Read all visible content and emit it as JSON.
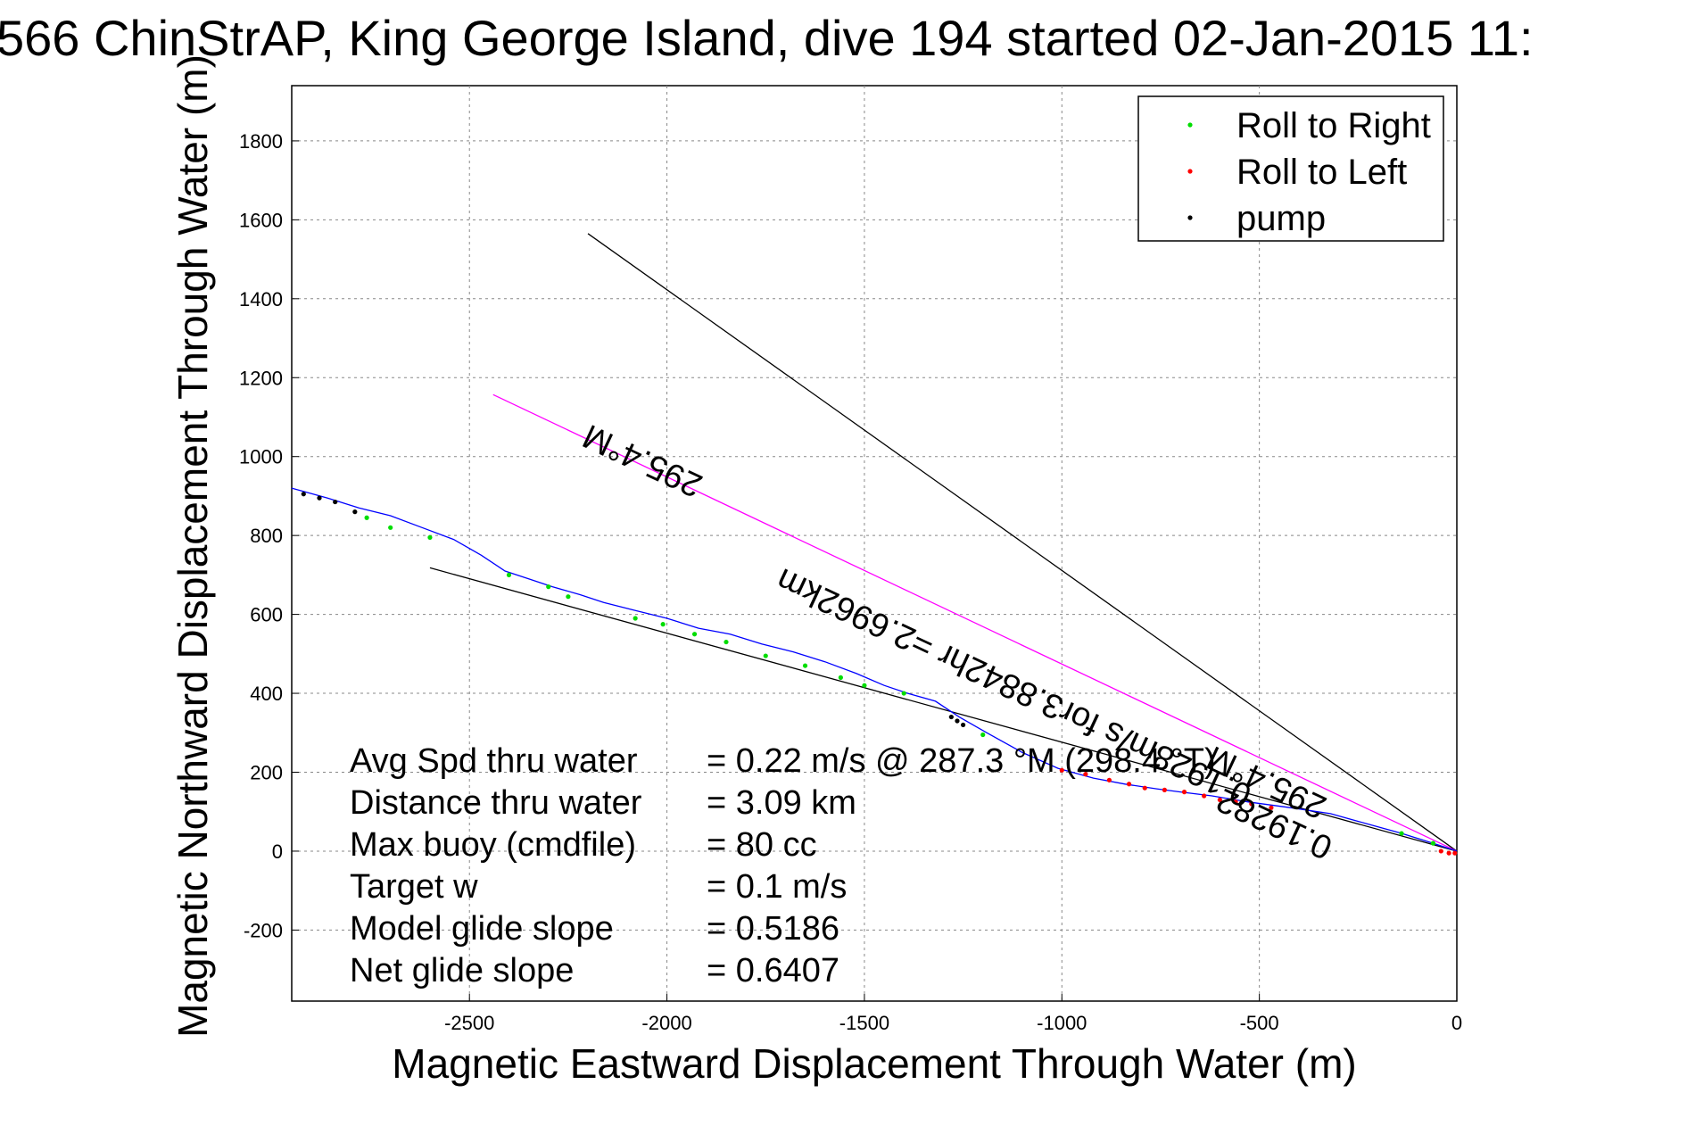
{
  "chart_data": {
    "type": "line",
    "title": "566 ChinStrAP, King George Island, dive 194 started 02-Jan-2015 11:",
    "xlabel": "Magnetic Eastward Displacement Through Water (m)",
    "ylabel": "Magnetic Northward Displacement Through Water (m)",
    "xlim": [
      -2950,
      0
    ],
    "ylim": [
      -380,
      1940
    ],
    "xticks": [
      -2500,
      -2000,
      -1500,
      -1000,
      -500,
      0
    ],
    "yticks": [
      -200,
      0,
      200,
      400,
      600,
      800,
      1000,
      1200,
      1400,
      1600,
      1800
    ],
    "grid": true,
    "legend": {
      "placement": "top-right",
      "entries": [
        {
          "label": "Roll to Right",
          "color": "#00dd00"
        },
        {
          "label": "Roll to Left",
          "color": "#ff0000"
        },
        {
          "label": "pump",
          "color": "#000000"
        }
      ]
    },
    "track": {
      "color": "#0000ff",
      "x": [
        0,
        -60,
        -140,
        -230,
        -320,
        -420,
        -530,
        -620,
        -700,
        -760,
        -840,
        -920,
        -1010,
        -1100,
        -1190,
        -1260,
        -1320,
        -1390,
        -1450,
        -1520,
        -1600,
        -1680,
        -1760,
        -1840,
        -1920,
        -2000,
        -2080,
        -2160,
        -2220,
        -2290,
        -2350,
        -2410,
        -2470,
        -2540,
        -2620,
        -2700,
        -2780,
        -2860,
        -2950
      ],
      "y": [
        0,
        20,
        45,
        70,
        95,
        110,
        125,
        140,
        150,
        158,
        170,
        185,
        210,
        250,
        300,
        340,
        380,
        400,
        420,
        450,
        480,
        505,
        525,
        550,
        565,
        590,
        610,
        630,
        650,
        670,
        690,
        710,
        750,
        790,
        820,
        850,
        870,
        895,
        920
      ]
    },
    "roll_right_points": {
      "x": [
        -60,
        -140,
        -1200,
        -1400,
        -1500,
        -1560,
        -1650,
        -1750,
        -1850,
        -1930,
        -2010,
        -2080,
        -2250,
        -2300,
        -2400,
        -2600,
        -2700,
        -2760
      ],
      "y": [
        20,
        45,
        295,
        400,
        420,
        440,
        470,
        495,
        530,
        550,
        575,
        590,
        645,
        670,
        700,
        795,
        820,
        845
      ]
    },
    "roll_left_points": {
      "x": [
        -5,
        -20,
        -40,
        -470,
        -520,
        -560,
        -600,
        -640,
        -690,
        -740,
        -790,
        -830,
        -880,
        -940,
        -1000
      ],
      "y": [
        -5,
        -5,
        0,
        110,
        120,
        125,
        130,
        140,
        150,
        155,
        160,
        170,
        180,
        195,
        205
      ]
    },
    "pump_points": {
      "x": [
        -1280,
        -1265,
        -1250,
        -2920,
        -2880,
        -2840,
        -2790
      ],
      "y": [
        340,
        330,
        320,
        905,
        895,
        885,
        860
      ]
    },
    "reference_lines": [
      {
        "name": "",
        "color": "#000000",
        "x": [
          0,
          -2200
        ],
        "y": [
          0,
          1565
        ]
      },
      {
        "name": "",
        "color": "#ff00ff",
        "x": [
          0,
          -2440
        ],
        "y": [
          0,
          1157
        ]
      },
      {
        "name": "",
        "color": "#000000",
        "x": [
          0,
          -2600
        ],
        "y": [
          0,
          718
        ]
      }
    ],
    "annotations": [
      {
        "text": "295.4°M",
        "x": -2050,
        "y": 1015,
        "rotate": 205
      },
      {
        "text": "0.1928m/s for3.8842hr =2.6962km",
        "x": -1110,
        "y": 440,
        "rotate": 205
      },
      {
        "text": "295.4°M",
        "x": -470,
        "y": 200,
        "rotate": 205
      },
      {
        "text": "0.19282",
        "x": -450,
        "y": 95,
        "rotate": 205
      }
    ],
    "stats": [
      {
        "label": "Avg Spd thru water",
        "value": "=  0.22 m/s @ 287.3  °M (298.4 °T)"
      },
      {
        "label": "Distance thru water",
        "value": "=  3.09 km"
      },
      {
        "label": "Max buoy (cmdfile)",
        "value": "= 80 cc"
      },
      {
        "label": "Target w",
        "value": "= 0.1 m/s"
      },
      {
        "label": "Model glide slope",
        "value": "= 0.5186"
      },
      {
        "label": "Net glide slope",
        "value": "= 0.6407"
      }
    ]
  }
}
